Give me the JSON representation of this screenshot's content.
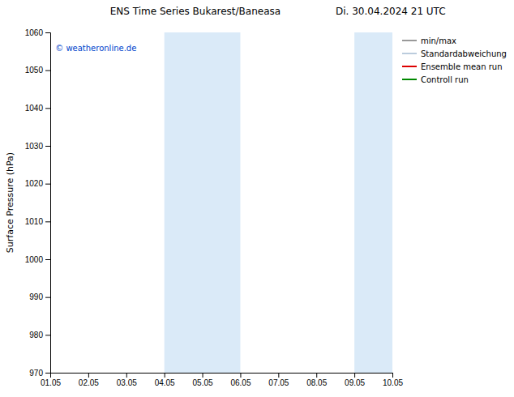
{
  "chart_data": {
    "type": "line",
    "title": "ENS Time Series Bukarest/Baneasa",
    "subtitle": "Di. 30.04.2024 21 UTC",
    "y_label": "Surface Pressure (hPa)",
    "categories": [
      "01.05",
      "02.05",
      "03.05",
      "04.05",
      "05.05",
      "06.05",
      "07.05",
      "08.05",
      "09.05",
      "10.05"
    ],
    "series": [
      {
        "name": "min/max",
        "color": "#999999",
        "values": [
          null,
          null,
          null,
          null,
          null,
          null,
          null,
          null,
          null,
          null
        ]
      },
      {
        "name": "Standardabweichung",
        "color": "#bbccdd",
        "values": [
          null,
          null,
          null,
          null,
          null,
          null,
          null,
          null,
          null,
          null
        ]
      },
      {
        "name": "Ensemble mean run",
        "color": "#dd0000",
        "values": [
          null,
          null,
          null,
          null,
          null,
          null,
          null,
          null,
          null,
          null
        ]
      },
      {
        "name": "Controll run",
        "color": "#008800",
        "values": [
          null,
          null,
          null,
          null,
          null,
          null,
          null,
          null,
          null,
          null
        ]
      }
    ],
    "shaded_regions": [
      {
        "start": "04.05",
        "end": "06.05",
        "color": "#daeaf8"
      },
      {
        "start": "09.05",
        "end": "10.05",
        "color": "#daeaf8"
      }
    ],
    "annotations": [
      {
        "text": "© weatheronline.de",
        "color": "#0044cc"
      }
    ],
    "ylim": [
      970,
      1060
    ],
    "yticks": [
      970,
      980,
      990,
      1000,
      1010,
      1020,
      1030,
      1040,
      1050,
      1060
    ],
    "grid": false,
    "legend": "upper right"
  }
}
